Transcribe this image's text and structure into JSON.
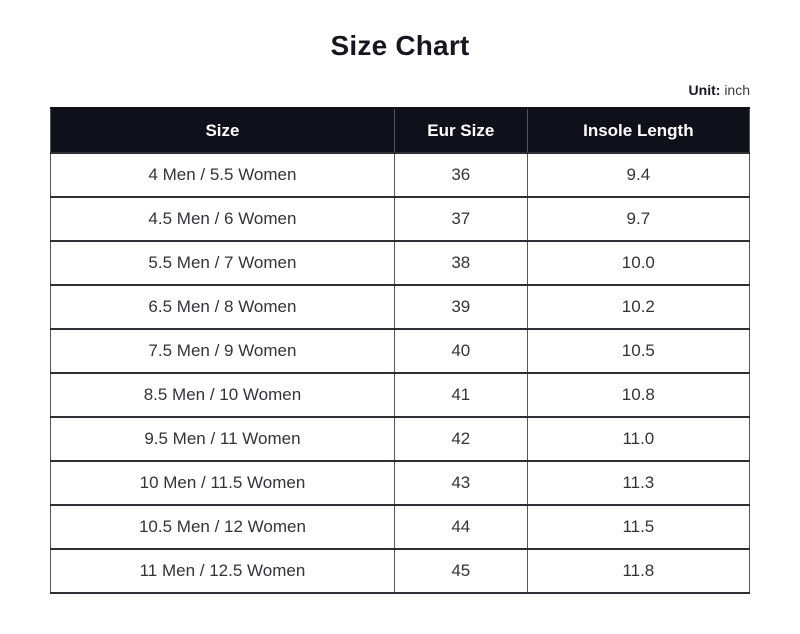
{
  "page": {
    "unit_label": "Unit:",
    "unit_value": "inch"
  },
  "colors": {
    "header_bg": "#10101a",
    "header_text": "#ffffff",
    "body_text": "#33333a",
    "border_horizontal": "#2e2e35",
    "border_vertical": "#55555e",
    "page_bg": "#ffffff"
  },
  "chart_data": {
    "type": "table",
    "title": "Size Chart",
    "columns": [
      "Size",
      "Eur Size",
      "Insole Length"
    ],
    "rows": [
      [
        "4 Men / 5.5 Women",
        "36",
        "9.4"
      ],
      [
        "4.5 Men / 6 Women",
        "37",
        "9.7"
      ],
      [
        "5.5 Men / 7 Women",
        "38",
        "10.0"
      ],
      [
        "6.5 Men / 8 Women",
        "39",
        "10.2"
      ],
      [
        "7.5 Men / 9 Women",
        "40",
        "10.5"
      ],
      [
        "8.5 Men / 10 Women",
        "41",
        "10.8"
      ],
      [
        "9.5 Men / 11 Women",
        "42",
        "11.0"
      ],
      [
        "10 Men / 11.5 Women",
        "43",
        "11.3"
      ],
      [
        "10.5 Men / 12 Women",
        "44",
        "11.5"
      ],
      [
        "11 Men / 12.5 Women",
        "45",
        "11.8"
      ]
    ]
  }
}
